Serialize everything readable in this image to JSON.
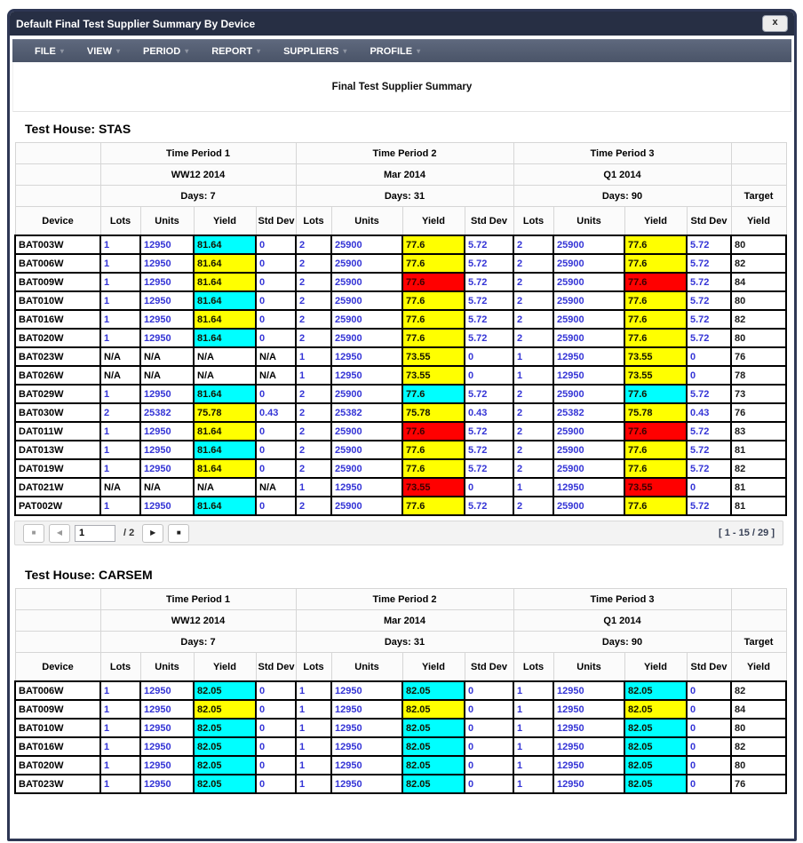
{
  "window": {
    "title": "Default Final Test Supplier Summary By Device",
    "close_icon": "x"
  },
  "menu": {
    "items": [
      "FILE",
      "VIEW",
      "PERIOD",
      "REPORT",
      "SUPPLIERS",
      "PROFILE"
    ],
    "caret_icon": "▾"
  },
  "report_title": "Final Test Supplier Summary",
  "table_header": {
    "periods": [
      {
        "title": "Time Period 1",
        "range": "WW12 2014",
        "days": "Days: 7"
      },
      {
        "title": "Time Period 2",
        "range": "Mar 2014",
        "days": "Days: 31"
      },
      {
        "title": "Time Period 3",
        "range": "Q1 2014",
        "days": "Days: 90"
      }
    ],
    "target_label": "Target",
    "columns": {
      "device": "Device",
      "lots": "Lots",
      "units": "Units",
      "yield": "Yield",
      "std_dev": "Std Dev",
      "target_yield": "Yield"
    }
  },
  "colors": {
    "yield_pass": "#00ffff",
    "yield_warn": "#ffff00",
    "yield_fail": "#ff0000",
    "value_text": "#3434d6"
  },
  "sections": [
    {
      "heading": "Test House: STAS",
      "rows": [
        {
          "device": "BAT003W",
          "periods": [
            {
              "lots": "1",
              "units": "12950",
              "yield": "81.64",
              "yield_color": "cyan",
              "std": "0"
            },
            {
              "lots": "2",
              "units": "25900",
              "yield": "77.6",
              "yield_color": "yellow",
              "std": "5.72"
            },
            {
              "lots": "2",
              "units": "25900",
              "yield": "77.6",
              "yield_color": "yellow",
              "std": "5.72"
            }
          ],
          "target": "80"
        },
        {
          "device": "BAT006W",
          "periods": [
            {
              "lots": "1",
              "units": "12950",
              "yield": "81.64",
              "yield_color": "yellow",
              "std": "0"
            },
            {
              "lots": "2",
              "units": "25900",
              "yield": "77.6",
              "yield_color": "yellow",
              "std": "5.72"
            },
            {
              "lots": "2",
              "units": "25900",
              "yield": "77.6",
              "yield_color": "yellow",
              "std": "5.72"
            }
          ],
          "target": "82"
        },
        {
          "device": "BAT009W",
          "periods": [
            {
              "lots": "1",
              "units": "12950",
              "yield": "81.64",
              "yield_color": "yellow",
              "std": "0"
            },
            {
              "lots": "2",
              "units": "25900",
              "yield": "77.6",
              "yield_color": "red",
              "std": "5.72"
            },
            {
              "lots": "2",
              "units": "25900",
              "yield": "77.6",
              "yield_color": "red",
              "std": "5.72"
            }
          ],
          "target": "84"
        },
        {
          "device": "BAT010W",
          "periods": [
            {
              "lots": "1",
              "units": "12950",
              "yield": "81.64",
              "yield_color": "cyan",
              "std": "0"
            },
            {
              "lots": "2",
              "units": "25900",
              "yield": "77.6",
              "yield_color": "yellow",
              "std": "5.72"
            },
            {
              "lots": "2",
              "units": "25900",
              "yield": "77.6",
              "yield_color": "yellow",
              "std": "5.72"
            }
          ],
          "target": "80"
        },
        {
          "device": "BAT016W",
          "periods": [
            {
              "lots": "1",
              "units": "12950",
              "yield": "81.64",
              "yield_color": "yellow",
              "std": "0"
            },
            {
              "lots": "2",
              "units": "25900",
              "yield": "77.6",
              "yield_color": "yellow",
              "std": "5.72"
            },
            {
              "lots": "2",
              "units": "25900",
              "yield": "77.6",
              "yield_color": "yellow",
              "std": "5.72"
            }
          ],
          "target": "82"
        },
        {
          "device": "BAT020W",
          "periods": [
            {
              "lots": "1",
              "units": "12950",
              "yield": "81.64",
              "yield_color": "cyan",
              "std": "0"
            },
            {
              "lots": "2",
              "units": "25900",
              "yield": "77.6",
              "yield_color": "yellow",
              "std": "5.72"
            },
            {
              "lots": "2",
              "units": "25900",
              "yield": "77.6",
              "yield_color": "yellow",
              "std": "5.72"
            }
          ],
          "target": "80"
        },
        {
          "device": "BAT023W",
          "periods": [
            {
              "lots": "N/A",
              "units": "N/A",
              "yield": "N/A",
              "yield_color": null,
              "std": "N/A"
            },
            {
              "lots": "1",
              "units": "12950",
              "yield": "73.55",
              "yield_color": "yellow",
              "std": "0"
            },
            {
              "lots": "1",
              "units": "12950",
              "yield": "73.55",
              "yield_color": "yellow",
              "std": "0"
            }
          ],
          "target": "76"
        },
        {
          "device": "BAT026W",
          "periods": [
            {
              "lots": "N/A",
              "units": "N/A",
              "yield": "N/A",
              "yield_color": null,
              "std": "N/A"
            },
            {
              "lots": "1",
              "units": "12950",
              "yield": "73.55",
              "yield_color": "yellow",
              "std": "0"
            },
            {
              "lots": "1",
              "units": "12950",
              "yield": "73.55",
              "yield_color": "yellow",
              "std": "0"
            }
          ],
          "target": "78"
        },
        {
          "device": "BAT029W",
          "periods": [
            {
              "lots": "1",
              "units": "12950",
              "yield": "81.64",
              "yield_color": "cyan",
              "std": "0"
            },
            {
              "lots": "2",
              "units": "25900",
              "yield": "77.6",
              "yield_color": "cyan",
              "std": "5.72"
            },
            {
              "lots": "2",
              "units": "25900",
              "yield": "77.6",
              "yield_color": "cyan",
              "std": "5.72"
            }
          ],
          "target": "73"
        },
        {
          "device": "BAT030W",
          "periods": [
            {
              "lots": "2",
              "units": "25382",
              "yield": "75.78",
              "yield_color": "yellow",
              "std": "0.43"
            },
            {
              "lots": "2",
              "units": "25382",
              "yield": "75.78",
              "yield_color": "yellow",
              "std": "0.43"
            },
            {
              "lots": "2",
              "units": "25382",
              "yield": "75.78",
              "yield_color": "yellow",
              "std": "0.43"
            }
          ],
          "target": "76"
        },
        {
          "device": "DAT011W",
          "periods": [
            {
              "lots": "1",
              "units": "12950",
              "yield": "81.64",
              "yield_color": "yellow",
              "std": "0"
            },
            {
              "lots": "2",
              "units": "25900",
              "yield": "77.6",
              "yield_color": "red",
              "std": "5.72"
            },
            {
              "lots": "2",
              "units": "25900",
              "yield": "77.6",
              "yield_color": "red",
              "std": "5.72"
            }
          ],
          "target": "83"
        },
        {
          "device": "DAT013W",
          "periods": [
            {
              "lots": "1",
              "units": "12950",
              "yield": "81.64",
              "yield_color": "cyan",
              "std": "0"
            },
            {
              "lots": "2",
              "units": "25900",
              "yield": "77.6",
              "yield_color": "yellow",
              "std": "5.72"
            },
            {
              "lots": "2",
              "units": "25900",
              "yield": "77.6",
              "yield_color": "yellow",
              "std": "5.72"
            }
          ],
          "target": "81"
        },
        {
          "device": "DAT019W",
          "periods": [
            {
              "lots": "1",
              "units": "12950",
              "yield": "81.64",
              "yield_color": "yellow",
              "std": "0"
            },
            {
              "lots": "2",
              "units": "25900",
              "yield": "77.6",
              "yield_color": "yellow",
              "std": "5.72"
            },
            {
              "lots": "2",
              "units": "25900",
              "yield": "77.6",
              "yield_color": "yellow",
              "std": "5.72"
            }
          ],
          "target": "82"
        },
        {
          "device": "DAT021W",
          "periods": [
            {
              "lots": "N/A",
              "units": "N/A",
              "yield": "N/A",
              "yield_color": null,
              "std": "N/A"
            },
            {
              "lots": "1",
              "units": "12950",
              "yield": "73.55",
              "yield_color": "red",
              "std": "0"
            },
            {
              "lots": "1",
              "units": "12950",
              "yield": "73.55",
              "yield_color": "red",
              "std": "0"
            }
          ],
          "target": "81"
        },
        {
          "device": "PAT002W",
          "periods": [
            {
              "lots": "1",
              "units": "12950",
              "yield": "81.64",
              "yield_color": "cyan",
              "std": "0"
            },
            {
              "lots": "2",
              "units": "25900",
              "yield": "77.6",
              "yield_color": "yellow",
              "std": "5.72"
            },
            {
              "lots": "2",
              "units": "25900",
              "yield": "77.6",
              "yield_color": "yellow",
              "std": "5.72"
            }
          ],
          "target": "81"
        }
      ],
      "pager": {
        "first_icon": "■",
        "prev_icon": "◀",
        "page": "1",
        "of_label": "/ 2",
        "next_icon": "▶",
        "last_icon": "■",
        "range": "[ 1 - 15 / 29 ]"
      }
    },
    {
      "heading": "Test House: CARSEM",
      "rows": [
        {
          "device": "BAT006W",
          "periods": [
            {
              "lots": "1",
              "units": "12950",
              "yield": "82.05",
              "yield_color": "cyan",
              "std": "0"
            },
            {
              "lots": "1",
              "units": "12950",
              "yield": "82.05",
              "yield_color": "cyan",
              "std": "0"
            },
            {
              "lots": "1",
              "units": "12950",
              "yield": "82.05",
              "yield_color": "cyan",
              "std": "0"
            }
          ],
          "target": "82"
        },
        {
          "device": "BAT009W",
          "periods": [
            {
              "lots": "1",
              "units": "12950",
              "yield": "82.05",
              "yield_color": "yellow",
              "std": "0"
            },
            {
              "lots": "1",
              "units": "12950",
              "yield": "82.05",
              "yield_color": "yellow",
              "std": "0"
            },
            {
              "lots": "1",
              "units": "12950",
              "yield": "82.05",
              "yield_color": "yellow",
              "std": "0"
            }
          ],
          "target": "84"
        },
        {
          "device": "BAT010W",
          "periods": [
            {
              "lots": "1",
              "units": "12950",
              "yield": "82.05",
              "yield_color": "cyan",
              "std": "0"
            },
            {
              "lots": "1",
              "units": "12950",
              "yield": "82.05",
              "yield_color": "cyan",
              "std": "0"
            },
            {
              "lots": "1",
              "units": "12950",
              "yield": "82.05",
              "yield_color": "cyan",
              "std": "0"
            }
          ],
          "target": "80"
        },
        {
          "device": "BAT016W",
          "periods": [
            {
              "lots": "1",
              "units": "12950",
              "yield": "82.05",
              "yield_color": "cyan",
              "std": "0"
            },
            {
              "lots": "1",
              "units": "12950",
              "yield": "82.05",
              "yield_color": "cyan",
              "std": "0"
            },
            {
              "lots": "1",
              "units": "12950",
              "yield": "82.05",
              "yield_color": "cyan",
              "std": "0"
            }
          ],
          "target": "82"
        },
        {
          "device": "BAT020W",
          "periods": [
            {
              "lots": "1",
              "units": "12950",
              "yield": "82.05",
              "yield_color": "cyan",
              "std": "0"
            },
            {
              "lots": "1",
              "units": "12950",
              "yield": "82.05",
              "yield_color": "cyan",
              "std": "0"
            },
            {
              "lots": "1",
              "units": "12950",
              "yield": "82.05",
              "yield_color": "cyan",
              "std": "0"
            }
          ],
          "target": "80"
        },
        {
          "device": "BAT023W",
          "periods": [
            {
              "lots": "1",
              "units": "12950",
              "yield": "82.05",
              "yield_color": "cyan",
              "std": "0"
            },
            {
              "lots": "1",
              "units": "12950",
              "yield": "82.05",
              "yield_color": "cyan",
              "std": "0"
            },
            {
              "lots": "1",
              "units": "12950",
              "yield": "82.05",
              "yield_color": "cyan",
              "std": "0"
            }
          ],
          "target": "76"
        }
      ]
    }
  ]
}
